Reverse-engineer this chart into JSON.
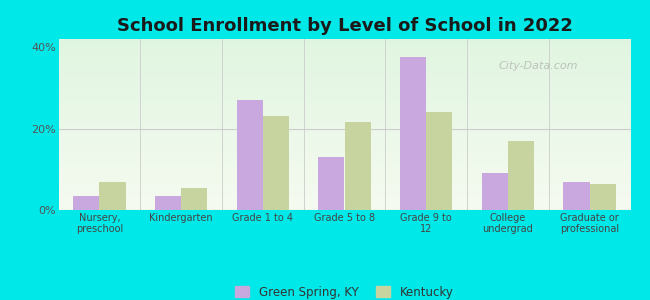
{
  "title": "School Enrollment by Level of School in 2022",
  "categories": [
    "Nursery,\npreschool",
    "Kindergarten",
    "Grade 1 to 4",
    "Grade 5 to 8",
    "Grade 9 to\n12",
    "College\nundergrad",
    "Graduate or\nprofessional"
  ],
  "green_spring": [
    3.5,
    3.5,
    27.0,
    13.0,
    37.5,
    9.0,
    7.0
  ],
  "kentucky": [
    7.0,
    5.5,
    23.0,
    21.5,
    24.0,
    17.0,
    6.5
  ],
  "green_spring_color": "#c9a8e0",
  "kentucky_color": "#c8d4a0",
  "ylim": [
    0,
    42
  ],
  "yticks": [
    0,
    20,
    40
  ],
  "ytick_labels": [
    "0%",
    "20%",
    "40%"
  ],
  "legend_label_gs": "Green Spring, KY",
  "legend_label_ky": "Kentucky",
  "bg_outer": "#00e8e8",
  "title_fontsize": 13,
  "watermark": "City-Data.com"
}
